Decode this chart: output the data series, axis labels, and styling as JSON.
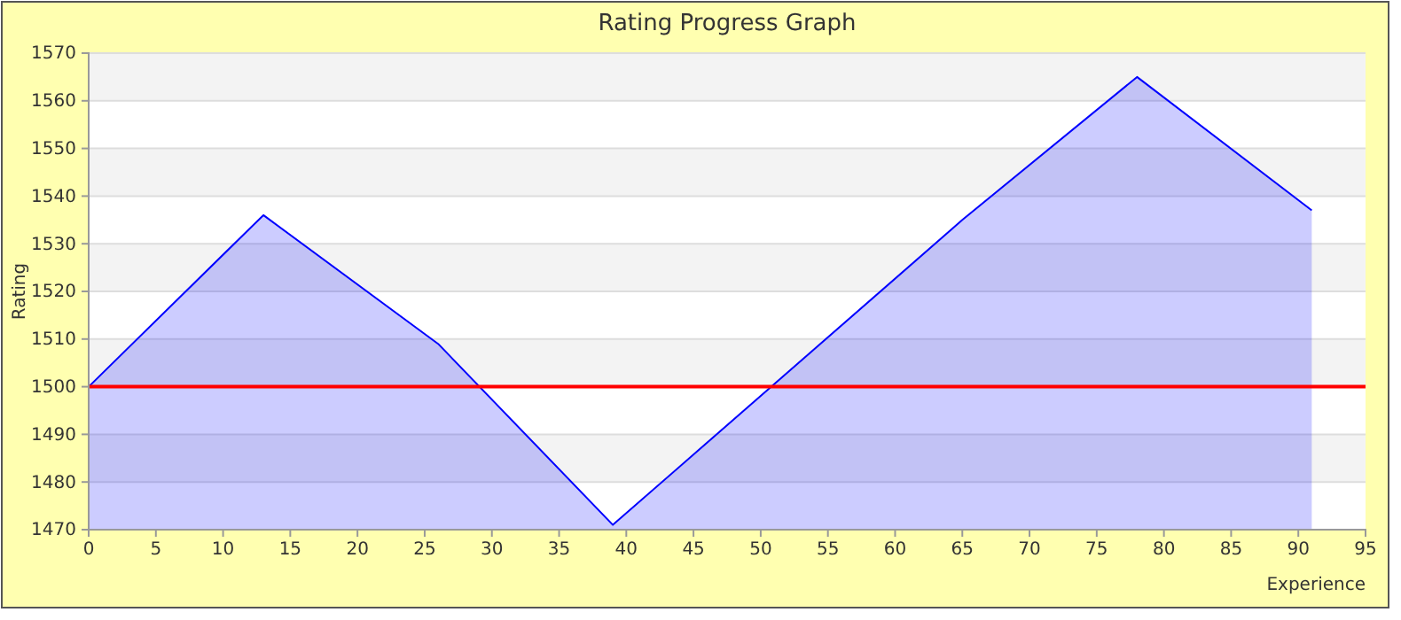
{
  "chart_data": {
    "type": "area",
    "title": "Rating Progress Graph",
    "xlabel": "Experience",
    "ylabel": "Rating",
    "x": [
      0,
      13,
      26,
      39,
      52,
      65,
      78,
      91
    ],
    "series": [
      {
        "color": "#0000ff",
        "values": [
          1500,
          1536,
          1509,
          1471,
          1503,
          1535,
          1565,
          1537
        ]
      }
    ],
    "xlim": [
      0,
      95
    ],
    "xticks": [
      0,
      5,
      10,
      15,
      20,
      25,
      30,
      35,
      40,
      45,
      50,
      55,
      60,
      65,
      70,
      75,
      80,
      85,
      90,
      95
    ],
    "ylim": [
      1470,
      1570
    ],
    "yticks": [
      1470,
      1480,
      1490,
      1500,
      1510,
      1520,
      1530,
      1540,
      1550,
      1560,
      1570
    ],
    "grid": "y",
    "ref_lines": [
      {
        "axis": "y",
        "value": 1500,
        "color": "#ff0000"
      }
    ]
  }
}
